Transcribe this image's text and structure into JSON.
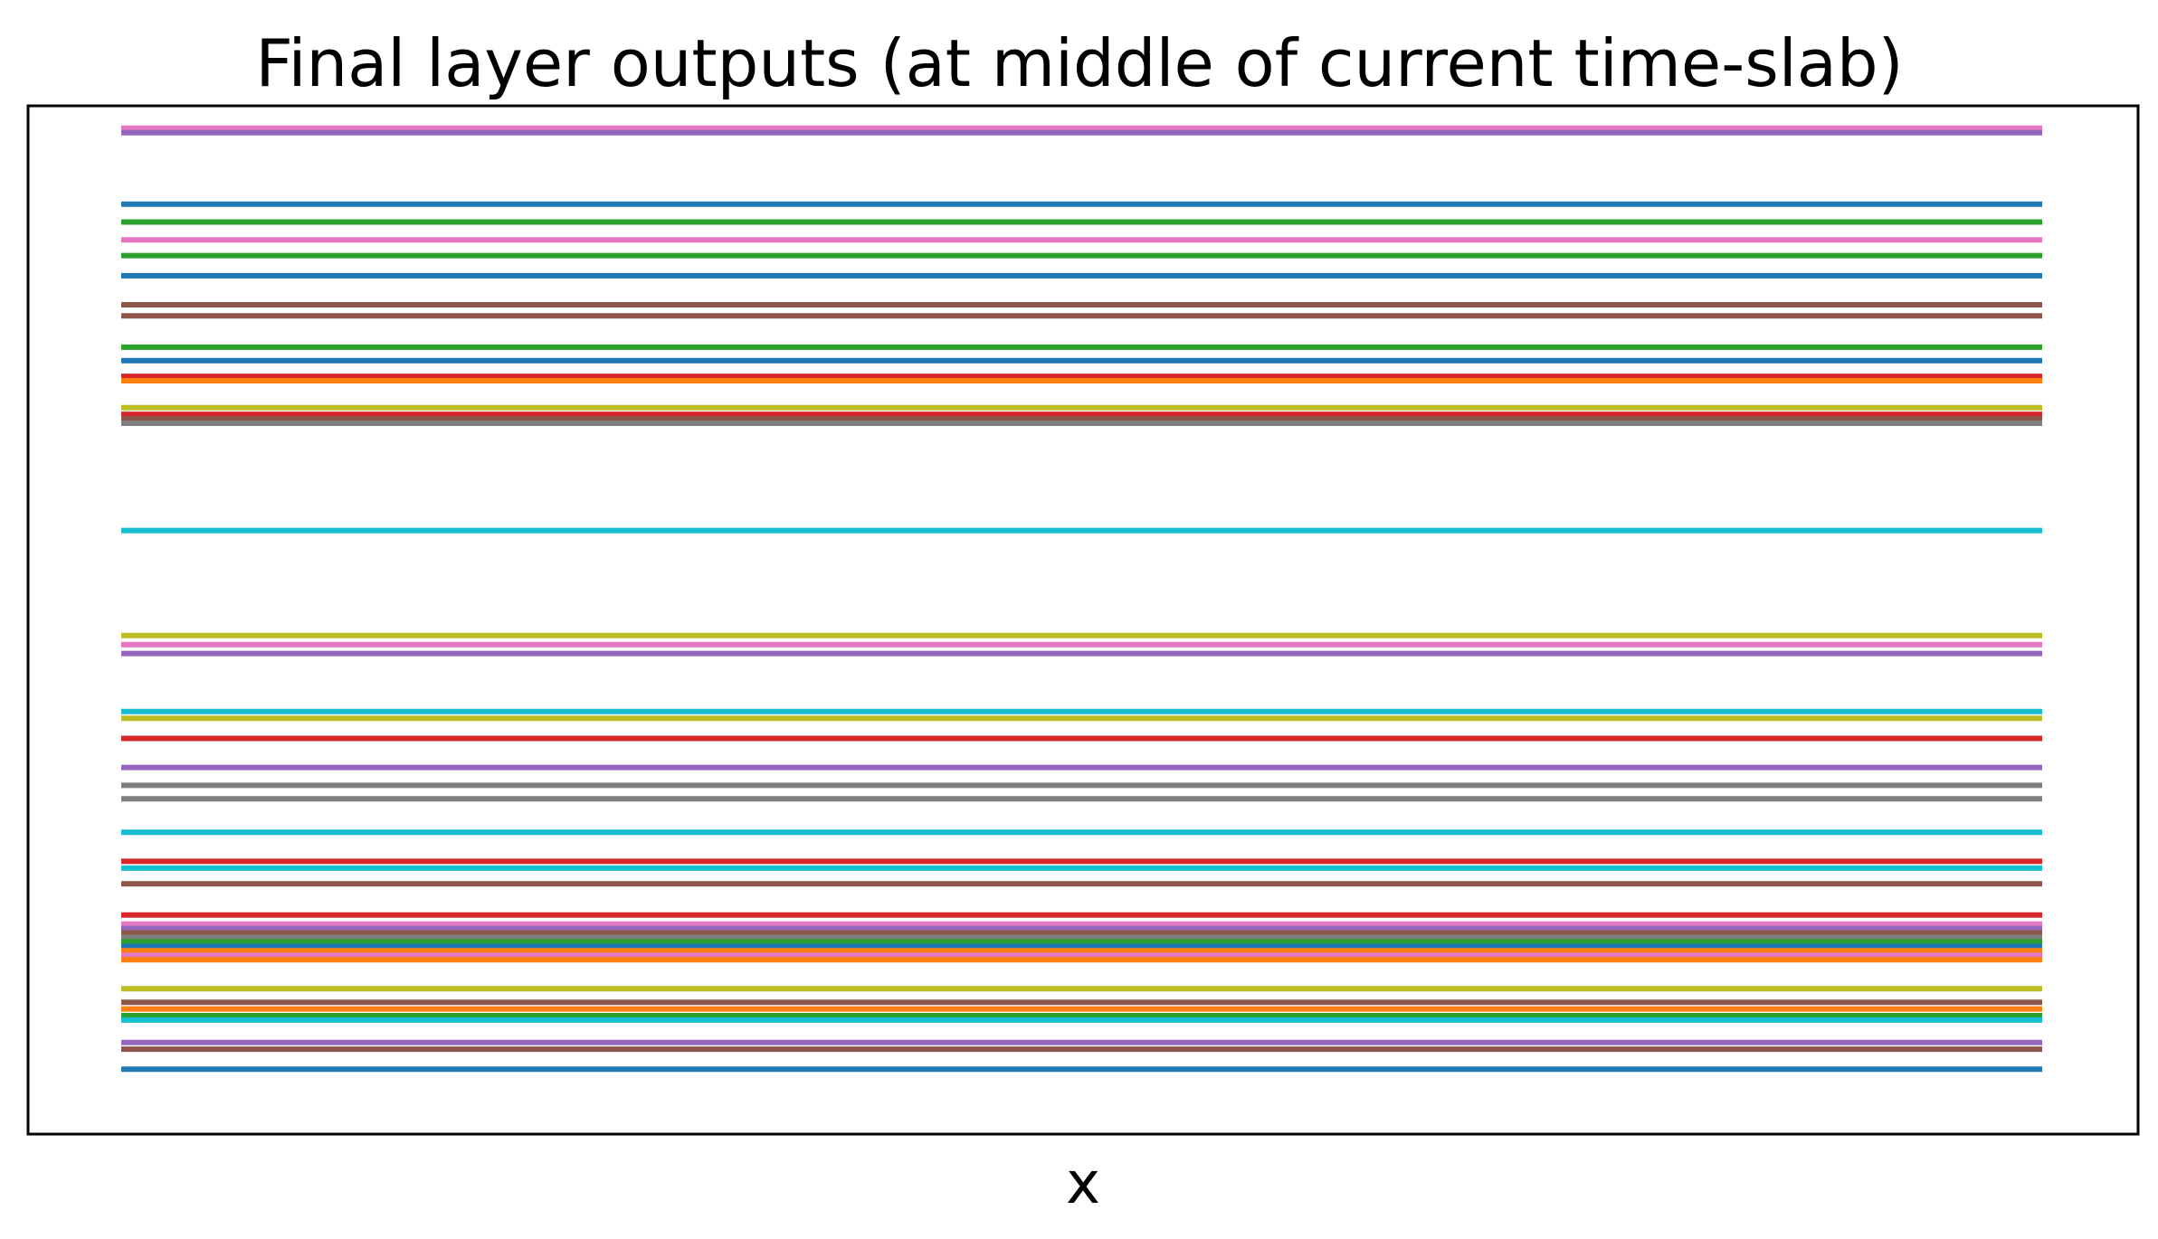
{
  "chart_data": {
    "type": "line",
    "title": "Final layer outputs (at middle of current time-slab)",
    "xlabel": "x",
    "ylabel": "",
    "x": [
      0,
      1
    ],
    "ylim": [
      -1,
      45
    ],
    "grid": false,
    "legend": "none",
    "ticks_visible": false,
    "series": [
      {
        "color": "#e377c2",
        "values": [
          44.0,
          44.0
        ]
      },
      {
        "color": "#9467bd",
        "values": [
          43.8,
          43.8
        ]
      },
      {
        "color": "#1f77b4",
        "values": [
          40.6,
          40.6
        ]
      },
      {
        "color": "#2ca02c",
        "values": [
          39.8,
          39.8
        ]
      },
      {
        "color": "#e377c2",
        "values": [
          39.0,
          39.0
        ]
      },
      {
        "color": "#2ca02c",
        "values": [
          38.3,
          38.3
        ]
      },
      {
        "color": "#1f77b4",
        "values": [
          37.4,
          37.4
        ]
      },
      {
        "color": "#8c564b",
        "values": [
          36.1,
          36.1
        ]
      },
      {
        "color": "#8c564b",
        "values": [
          35.6,
          35.6
        ]
      },
      {
        "color": "#2ca02c",
        "values": [
          34.2,
          34.2
        ]
      },
      {
        "color": "#1f77b4",
        "values": [
          33.6,
          33.6
        ]
      },
      {
        "color": "#d62728",
        "values": [
          32.9,
          32.9
        ]
      },
      {
        "color": "#ff7f0e",
        "values": [
          32.7,
          32.7
        ]
      },
      {
        "color": "#bcbd22",
        "values": [
          31.5,
          31.5
        ]
      },
      {
        "color": "#d62728",
        "values": [
          31.2,
          31.2
        ]
      },
      {
        "color": "#8c564b",
        "values": [
          31.0,
          31.0
        ]
      },
      {
        "color": "#7f7f7f",
        "values": [
          30.8,
          30.8
        ]
      },
      {
        "color": "#17becf",
        "values": [
          26.0,
          26.0
        ]
      },
      {
        "color": "#bcbd22",
        "values": [
          21.3,
          21.3
        ]
      },
      {
        "color": "#e377c2",
        "values": [
          20.9,
          20.9
        ]
      },
      {
        "color": "#9467bd",
        "values": [
          20.5,
          20.5
        ]
      },
      {
        "color": "#17becf",
        "values": [
          17.9,
          17.9
        ]
      },
      {
        "color": "#bcbd22",
        "values": [
          17.6,
          17.6
        ]
      },
      {
        "color": "#d62728",
        "values": [
          16.7,
          16.7
        ]
      },
      {
        "color": "#9467bd",
        "values": [
          15.4,
          15.4
        ]
      },
      {
        "color": "#7f7f7f",
        "values": [
          14.6,
          14.6
        ]
      },
      {
        "color": "#7f7f7f",
        "values": [
          14.0,
          14.0
        ]
      },
      {
        "color": "#17becf",
        "values": [
          12.5,
          12.5
        ]
      },
      {
        "color": "#d62728",
        "values": [
          11.2,
          11.2
        ]
      },
      {
        "color": "#17becf",
        "values": [
          10.9,
          10.9
        ]
      },
      {
        "color": "#8c564b",
        "values": [
          10.2,
          10.2
        ]
      },
      {
        "color": "#d62728",
        "values": [
          8.8,
          8.8
        ]
      },
      {
        "color": "#e377c2",
        "values": [
          8.4,
          8.4
        ]
      },
      {
        "color": "#9467bd",
        "values": [
          8.2,
          8.2
        ]
      },
      {
        "color": "#8c564b",
        "values": [
          8.0,
          8.0
        ]
      },
      {
        "color": "#7f7f7f",
        "values": [
          7.8,
          7.8
        ]
      },
      {
        "color": "#2ca02c",
        "values": [
          7.6,
          7.6
        ]
      },
      {
        "color": "#1f77b4",
        "values": [
          7.4,
          7.4
        ]
      },
      {
        "color": "#ff7f0e",
        "values": [
          7.2,
          7.2
        ]
      },
      {
        "color": "#e377c2",
        "values": [
          7.0,
          7.0
        ]
      },
      {
        "color": "#ff7f0e",
        "values": [
          6.8,
          6.8
        ]
      },
      {
        "color": "#bcbd22",
        "values": [
          5.5,
          5.5
        ]
      },
      {
        "color": "#8c564b",
        "values": [
          4.9,
          4.9
        ]
      },
      {
        "color": "#ff7f0e",
        "values": [
          4.6,
          4.6
        ]
      },
      {
        "color": "#2ca02c",
        "values": [
          4.3,
          4.3
        ]
      },
      {
        "color": "#17becf",
        "values": [
          4.1,
          4.1
        ]
      },
      {
        "color": "#9467bd",
        "values": [
          3.1,
          3.1
        ]
      },
      {
        "color": "#8c564b",
        "values": [
          2.8,
          2.8
        ]
      },
      {
        "color": "#1f77b4",
        "values": [
          1.9,
          1.9
        ]
      }
    ]
  }
}
